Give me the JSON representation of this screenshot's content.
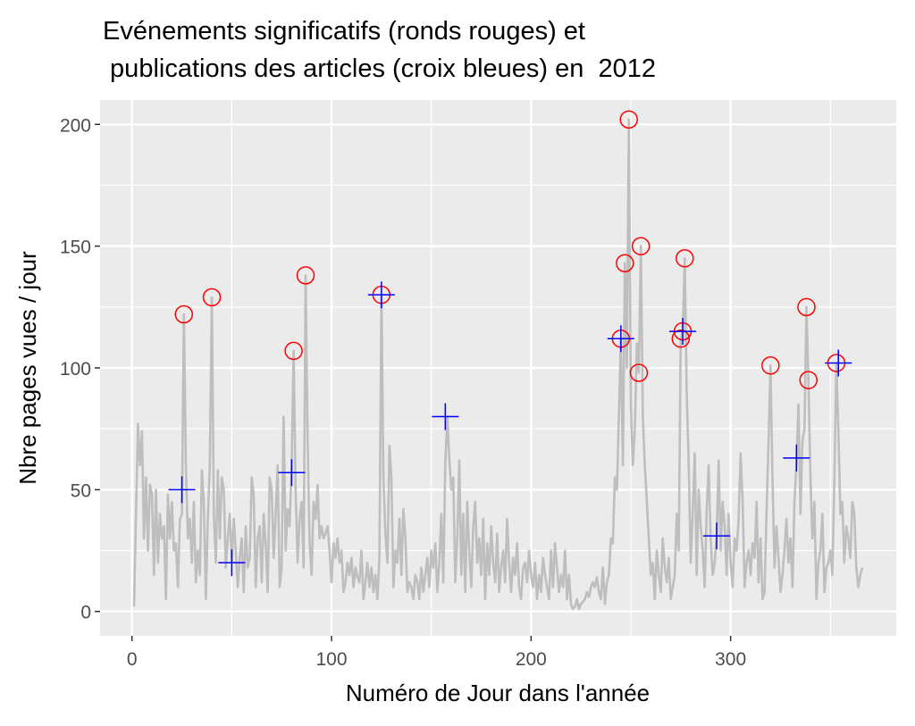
{
  "chart_data": {
    "type": "line",
    "title_lines": [
      "Evénements significatifs (ronds rouges) et",
      " publications des articles (croix bleues) en  2012"
    ],
    "xlabel": "Numéro de Jour dans l'année",
    "ylabel": "Nbre pages vues / jour",
    "xlim": [
      -16,
      383
    ],
    "ylim": [
      -10,
      210
    ],
    "x_ticks": [
      0,
      100,
      200,
      300
    ],
    "y_ticks": [
      0,
      50,
      100,
      150,
      200
    ],
    "grid": true,
    "colors": {
      "panel": "#EBEBEB",
      "grid": "#FFFFFF",
      "line": "#BEBEBE",
      "events": "#FF0000",
      "articles": "#0000FF",
      "tick_text": "#4D4D4D"
    },
    "daily_views": [
      2,
      40,
      77,
      60,
      74,
      30,
      55,
      25,
      52,
      48,
      15,
      50,
      20,
      40,
      30,
      35,
      5,
      48,
      30,
      45,
      25,
      28,
      10,
      38,
      40,
      122,
      60,
      30,
      38,
      20,
      45,
      12,
      25,
      15,
      58,
      45,
      5,
      38,
      60,
      129,
      40,
      20,
      58,
      30,
      55,
      50,
      18,
      30,
      40,
      20,
      38,
      25,
      10,
      22,
      30,
      8,
      35,
      18,
      22,
      55,
      48,
      10,
      30,
      35,
      12,
      40,
      28,
      8,
      55,
      50,
      22,
      40,
      60,
      10,
      18,
      80,
      25,
      42,
      35,
      60,
      107,
      50,
      20,
      38,
      45,
      18,
      138,
      72,
      28,
      15,
      45,
      38,
      52,
      30,
      35,
      30,
      32,
      35,
      25,
      12,
      28,
      22,
      30,
      20,
      25,
      8,
      12,
      20,
      15,
      22,
      10,
      18,
      14,
      12,
      25,
      5,
      12,
      20,
      10,
      18,
      8,
      15,
      5,
      22,
      130,
      55,
      32,
      20,
      68,
      55,
      10,
      25,
      20,
      38,
      15,
      42,
      30,
      8,
      12,
      10,
      5,
      15,
      12,
      5,
      18,
      8,
      15,
      22,
      10,
      25,
      18,
      28,
      8,
      20,
      40,
      12,
      60,
      80,
      63,
      50,
      55,
      12,
      30,
      62,
      15,
      40,
      8,
      45,
      25,
      10,
      35,
      45,
      20,
      30,
      15,
      38,
      5,
      28,
      15,
      35,
      20,
      12,
      32,
      8,
      18,
      25,
      12,
      38,
      20,
      8,
      22,
      15,
      28,
      10,
      5,
      18,
      20,
      12,
      25,
      15,
      10,
      20,
      5,
      15,
      8,
      22,
      15,
      10,
      5,
      25,
      10,
      28,
      18,
      8,
      15,
      10,
      25,
      5,
      15,
      3,
      1,
      2,
      5,
      1,
      3,
      4,
      5,
      8,
      6,
      10,
      12,
      10,
      14,
      8,
      5,
      18,
      3,
      12,
      15,
      30,
      28,
      55,
      50,
      80,
      112,
      60,
      143,
      100,
      202,
      85,
      60,
      75,
      110,
      98,
      150,
      80,
      60,
      45,
      30,
      15,
      20,
      5,
      25,
      15,
      8,
      30,
      18,
      12,
      22,
      5,
      10,
      15,
      40,
      25,
      112,
      115,
      145,
      90,
      60,
      20,
      40,
      65,
      15,
      50,
      35,
      25,
      10,
      42,
      60,
      30,
      15,
      20,
      31,
      62,
      25,
      45,
      35,
      15,
      40,
      20,
      10,
      30,
      25,
      38,
      65,
      45,
      10,
      20,
      25,
      15,
      28,
      22,
      45,
      12,
      30,
      5,
      8,
      40,
      70,
      101,
      55,
      18,
      35,
      22,
      8,
      15,
      25,
      38,
      20,
      30,
      10,
      45,
      60,
      85,
      40,
      70,
      75,
      125,
      95,
      55,
      30,
      45,
      5,
      20,
      25,
      40,
      8,
      18,
      20,
      25,
      15,
      55,
      102,
      75,
      40,
      45,
      20,
      35,
      30,
      22,
      45,
      40,
      18,
      10,
      15,
      18
    ],
    "events": [
      [
        26,
        122
      ],
      [
        40,
        129
      ],
      [
        81,
        107
      ],
      [
        87,
        138
      ],
      [
        125,
        130
      ],
      [
        245,
        112
      ],
      [
        247,
        143
      ],
      [
        249,
        202
      ],
      [
        254,
        98
      ],
      [
        255,
        150
      ],
      [
        275,
        112
      ],
      [
        276,
        115
      ],
      [
        277,
        145
      ],
      [
        320,
        101
      ],
      [
        338,
        125
      ],
      [
        339,
        95
      ],
      [
        353,
        102
      ]
    ],
    "articles": [
      [
        25,
        50
      ],
      [
        50,
        20
      ],
      [
        80,
        57
      ],
      [
        125,
        130
      ],
      [
        157,
        80
      ],
      [
        245,
        112
      ],
      [
        276,
        115
      ],
      [
        293,
        31
      ],
      [
        333,
        63
      ],
      [
        354,
        102
      ]
    ]
  }
}
